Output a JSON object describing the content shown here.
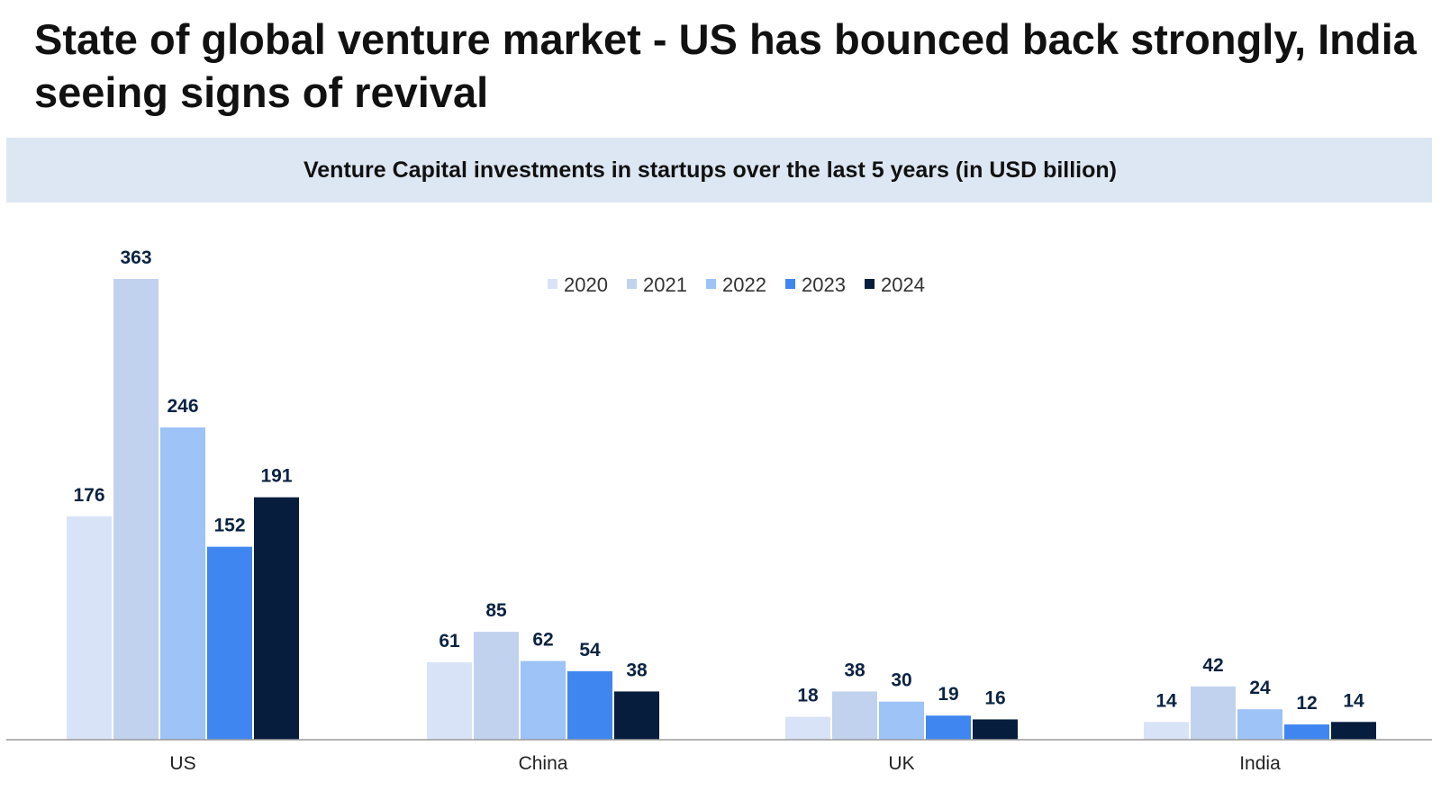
{
  "title": "State of global venture market - US has bounced back strongly, India seeing signs of revival",
  "chart_data": {
    "type": "bar",
    "title": "Venture Capital investments in startups over the last 5 years (in USD billion)",
    "categories": [
      "US",
      "China",
      "UK",
      "India"
    ],
    "series": [
      {
        "name": "2020",
        "values": [
          176,
          61,
          18,
          14
        ],
        "color": "#d9e3f7"
      },
      {
        "name": "2021",
        "values": [
          363,
          85,
          38,
          42
        ],
        "color": "#c1d2ee"
      },
      {
        "name": "2022",
        "values": [
          246,
          62,
          30,
          24
        ],
        "color": "#9dc3f7"
      },
      {
        "name": "2023",
        "values": [
          152,
          54,
          19,
          12
        ],
        "color": "#3f86f0"
      },
      {
        "name": "2024",
        "values": [
          191,
          38,
          16,
          14
        ],
        "color": "#061d3d"
      }
    ],
    "ylim": [
      0,
      363
    ],
    "legend": "top-center",
    "grid": false
  }
}
